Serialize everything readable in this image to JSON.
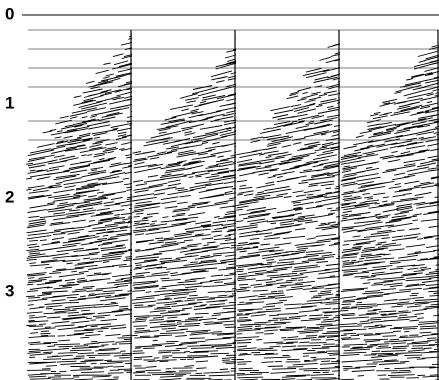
{
  "axis": {
    "labels": [
      "0",
      "1",
      "2",
      "3"
    ]
  }
}
